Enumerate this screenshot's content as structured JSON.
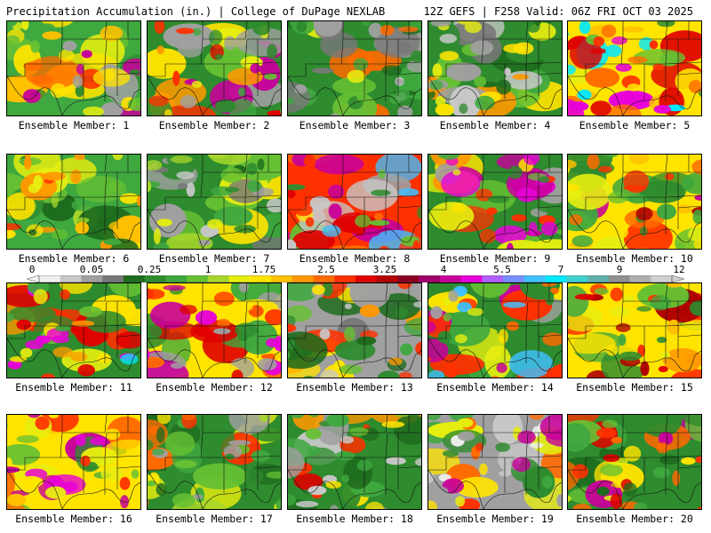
{
  "header": {
    "title": "Precipitation Accumulation (in.) | College of DuPage NEXLAB",
    "run_info": "12Z GEFS | F258 Valid: 06Z FRI OCT 03 2025"
  },
  "colorbar": {
    "labels": [
      "0",
      "0.05",
      "0.25",
      "1",
      "1.75",
      "2.5",
      "3.25",
      "4",
      "5.5",
      "7",
      "9",
      "12"
    ],
    "colors": [
      "#f0f0f0",
      "#c8c8c8",
      "#a0a0a0",
      "#787878",
      "#1e6b1e",
      "#2e8b2e",
      "#3fa83f",
      "#66c033",
      "#a6d62a",
      "#e6ee10",
      "#ffe400",
      "#ffc000",
      "#ff9800",
      "#ff6a00",
      "#ff3000",
      "#e00000",
      "#b00000",
      "#8a0020",
      "#a0006a",
      "#c8009a",
      "#e800d8",
      "#b060ff",
      "#7890ff",
      "#40c0ff",
      "#00e8ff",
      "#40d0d0",
      "#60b0b0",
      "#909090",
      "#b0b0b0",
      "#d0d0d0"
    ]
  },
  "members": [
    {
      "label": "Ensemble Member: 1",
      "palette": [
        "#3fa83f",
        "#ffe400",
        "#ff6a00",
        "#66c033",
        "#e6ee10",
        "#2e8b2e",
        "#ff3000",
        "#a0a0a0",
        "#c8009a",
        "#ffc000"
      ]
    },
    {
      "label": "Ensemble Member: 2",
      "palette": [
        "#2e8b2e",
        "#ffe400",
        "#ff3000",
        "#e6ee10",
        "#c8009a",
        "#3fa83f",
        "#ff9800",
        "#a0a0a0",
        "#e00000",
        "#66c033"
      ]
    },
    {
      "label": "Ensemble Member: 3",
      "palette": [
        "#2e8b2e",
        "#a0a0a0",
        "#c8c8c8",
        "#3fa83f",
        "#66c033",
        "#1e6b1e",
        "#ffe400",
        "#ff6a00",
        "#787878",
        "#e6ee10"
      ]
    },
    {
      "label": "Ensemble Member: 4",
      "palette": [
        "#2e8b2e",
        "#3fa83f",
        "#a0a0a0",
        "#66c033",
        "#ffe400",
        "#1e6b1e",
        "#c8c8c8",
        "#ff9800",
        "#e6ee10",
        "#787878"
      ]
    },
    {
      "label": "Ensemble Member: 5",
      "palette": [
        "#ffe400",
        "#ff6a00",
        "#ff3000",
        "#66c033",
        "#e800d8",
        "#ffc000",
        "#00e8ff",
        "#2e8b2e",
        "#e00000",
        "#e6ee10"
      ]
    },
    {
      "label": "Ensemble Member: 6",
      "palette": [
        "#3fa83f",
        "#66c033",
        "#ffe400",
        "#e6ee10",
        "#2e8b2e",
        "#ff9800",
        "#ff3000",
        "#a6d62a",
        "#ffc000",
        "#1e6b1e"
      ]
    },
    {
      "label": "Ensemble Member: 7",
      "palette": [
        "#2e8b2e",
        "#3fa83f",
        "#a0a0a0",
        "#66c033",
        "#1e6b1e",
        "#c8c8c8",
        "#ffe400",
        "#a6d62a",
        "#787878",
        "#e6ee10"
      ]
    },
    {
      "label": "Ensemble Member: 8",
      "palette": [
        "#ff3000",
        "#ffe400",
        "#2e8b2e",
        "#c8c8c8",
        "#e00000",
        "#c8009a",
        "#ff6a00",
        "#a0a0a0",
        "#40c0ff",
        "#66c033"
      ]
    },
    {
      "label": "Ensemble Member: 9",
      "palette": [
        "#2e8b2e",
        "#ffe400",
        "#ff3000",
        "#a0a0a0",
        "#3fa83f",
        "#c8009a",
        "#ff9800",
        "#66c033",
        "#e800d8",
        "#e6ee10"
      ]
    },
    {
      "label": "Ensemble Member: 10",
      "palette": [
        "#ffe400",
        "#3fa83f",
        "#ff3000",
        "#2e8b2e",
        "#e6ee10",
        "#c8009a",
        "#ff6a00",
        "#66c033",
        "#b00000",
        "#ffc000"
      ]
    },
    {
      "label": "Ensemble Member: 11",
      "palette": [
        "#2e8b2e",
        "#ffe400",
        "#ff3000",
        "#3fa83f",
        "#e800d8",
        "#66c033",
        "#ff9800",
        "#00e8ff",
        "#e6ee10",
        "#e00000"
      ]
    },
    {
      "label": "Ensemble Member: 12",
      "palette": [
        "#ffe400",
        "#ff3000",
        "#2e8b2e",
        "#c8009a",
        "#a0a0a0",
        "#ff6a00",
        "#e800d8",
        "#3fa83f",
        "#e00000",
        "#40c0ff"
      ]
    },
    {
      "label": "Ensemble Member: 13",
      "palette": [
        "#a0a0a0",
        "#2e8b2e",
        "#c8c8c8",
        "#3fa83f",
        "#ffe400",
        "#787878",
        "#ff3000",
        "#66c033",
        "#1e6b1e",
        "#ff9800"
      ]
    },
    {
      "label": "Ensemble Member: 14",
      "palette": [
        "#2e8b2e",
        "#ffe400",
        "#ff3000",
        "#3fa83f",
        "#c8009a",
        "#a0a0a0",
        "#ff6a00",
        "#66c033",
        "#40c0ff",
        "#e6ee10"
      ]
    },
    {
      "label": "Ensemble Member: 15",
      "palette": [
        "#ffe400",
        "#ff3000",
        "#ff9800",
        "#2e8b2e",
        "#e00000",
        "#66c033",
        "#ffc000",
        "#3fa83f",
        "#e6ee10",
        "#b00000"
      ]
    },
    {
      "label": "Ensemble Member: 16",
      "palette": [
        "#ffe400",
        "#ff6a00",
        "#2e8b2e",
        "#ff3000",
        "#c8009a",
        "#66c033",
        "#e6ee10",
        "#e800d8",
        "#3fa83f",
        "#ffc000"
      ]
    },
    {
      "label": "Ensemble Member: 17",
      "palette": [
        "#2e8b2e",
        "#3fa83f",
        "#ffe400",
        "#66c033",
        "#ff6a00",
        "#a0a0a0",
        "#e6ee10",
        "#1e6b1e",
        "#ff3000",
        "#a6d62a"
      ]
    },
    {
      "label": "Ensemble Member: 18",
      "palette": [
        "#2e8b2e",
        "#a0a0a0",
        "#ffe400",
        "#3fa83f",
        "#c8c8c8",
        "#ff3000",
        "#66c033",
        "#ff9800",
        "#1e6b1e",
        "#e00000"
      ]
    },
    {
      "label": "Ensemble Member: 19",
      "palette": [
        "#a0a0a0",
        "#c8c8c8",
        "#ffe400",
        "#ff3000",
        "#2e8b2e",
        "#c8009a",
        "#f0f0f0",
        "#ff6a00",
        "#3fa83f",
        "#e6ee10"
      ]
    },
    {
      "label": "Ensemble Member: 20",
      "palette": [
        "#2e8b2e",
        "#ffe400",
        "#3fa83f",
        "#ff6a00",
        "#c8009a",
        "#66c033",
        "#ff3000",
        "#e6ee10",
        "#e00000",
        "#1e6b1e"
      ]
    }
  ]
}
